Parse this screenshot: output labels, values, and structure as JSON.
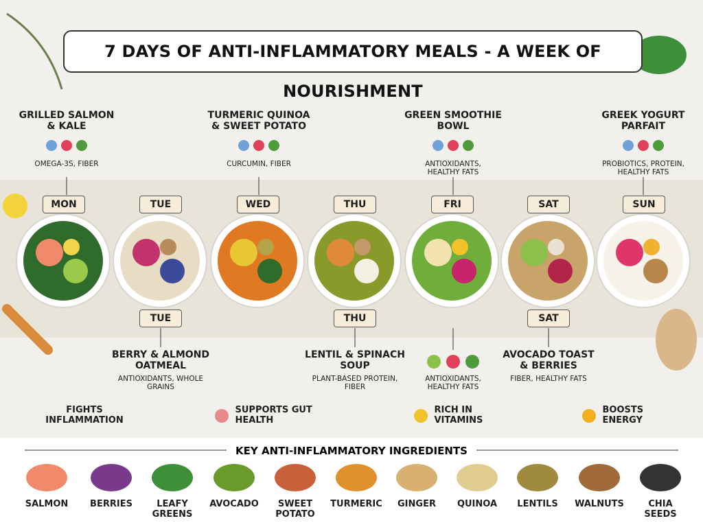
{
  "title": "7 DAYS OF ANTI-INFLAMMATORY MEALS - A WEEK OF NOURISHMENT",
  "days": [
    "MON",
    "TUE",
    "WED",
    "THU",
    "FRI",
    "SAT",
    "SUN"
  ],
  "lower_days": [
    "TUE",
    "THU",
    "SAT"
  ],
  "top_meals": [
    {
      "name": "GRILLED SALMON & KALE",
      "benefits": "OMEGA-3S, FIBER"
    },
    {
      "name": "TURMERIC QUINOA & SWEET POTATO",
      "benefits": "CURCUMIN, FIBER"
    },
    {
      "name": "GREEN SMOOTHIE BOWL",
      "benefits": "ANTIOXIDANTS, HEALTHY FATS"
    },
    {
      "name": "GREEK YOGURT PARFAIT",
      "benefits": "PROBIOTICS, PROTEIN, HEALTHY FATS"
    }
  ],
  "bottom_meals": [
    {
      "name": "BERRY & ALMOND OATMEAL",
      "benefits": "ANTIOXIDANTS, WHOLE GRAINS"
    },
    {
      "name": "LENTIL & SPINACH SOUP",
      "benefits": "PLANT-BASED PROTEIN, FIBER"
    },
    {
      "benefits": "ANTIOXIDANTS, HEALTHY FATS"
    },
    {
      "name": "AVOCADO TOAST & BERRIES",
      "benefits": "FIBER, HEALTHY FATS"
    }
  ],
  "benefits": [
    "FIGHTS INFLAMMATION",
    "SUPPORTS GUT HEALTH",
    "RICH IN VITAMINS",
    "BOOSTS ENERGY"
  ],
  "ingredients": {
    "title": "KEY ANTI-INFLAMMATORY INGREDIENTS",
    "items": [
      "SALMON",
      "BERRIES",
      "LEAFY GREENS",
      "AVOCADO",
      "SWEET POTATO",
      "TURMERIC",
      "GINGER",
      "QUINOA",
      "LENTILS",
      "WALNUTS",
      "CHIA SEEDS"
    ]
  }
}
